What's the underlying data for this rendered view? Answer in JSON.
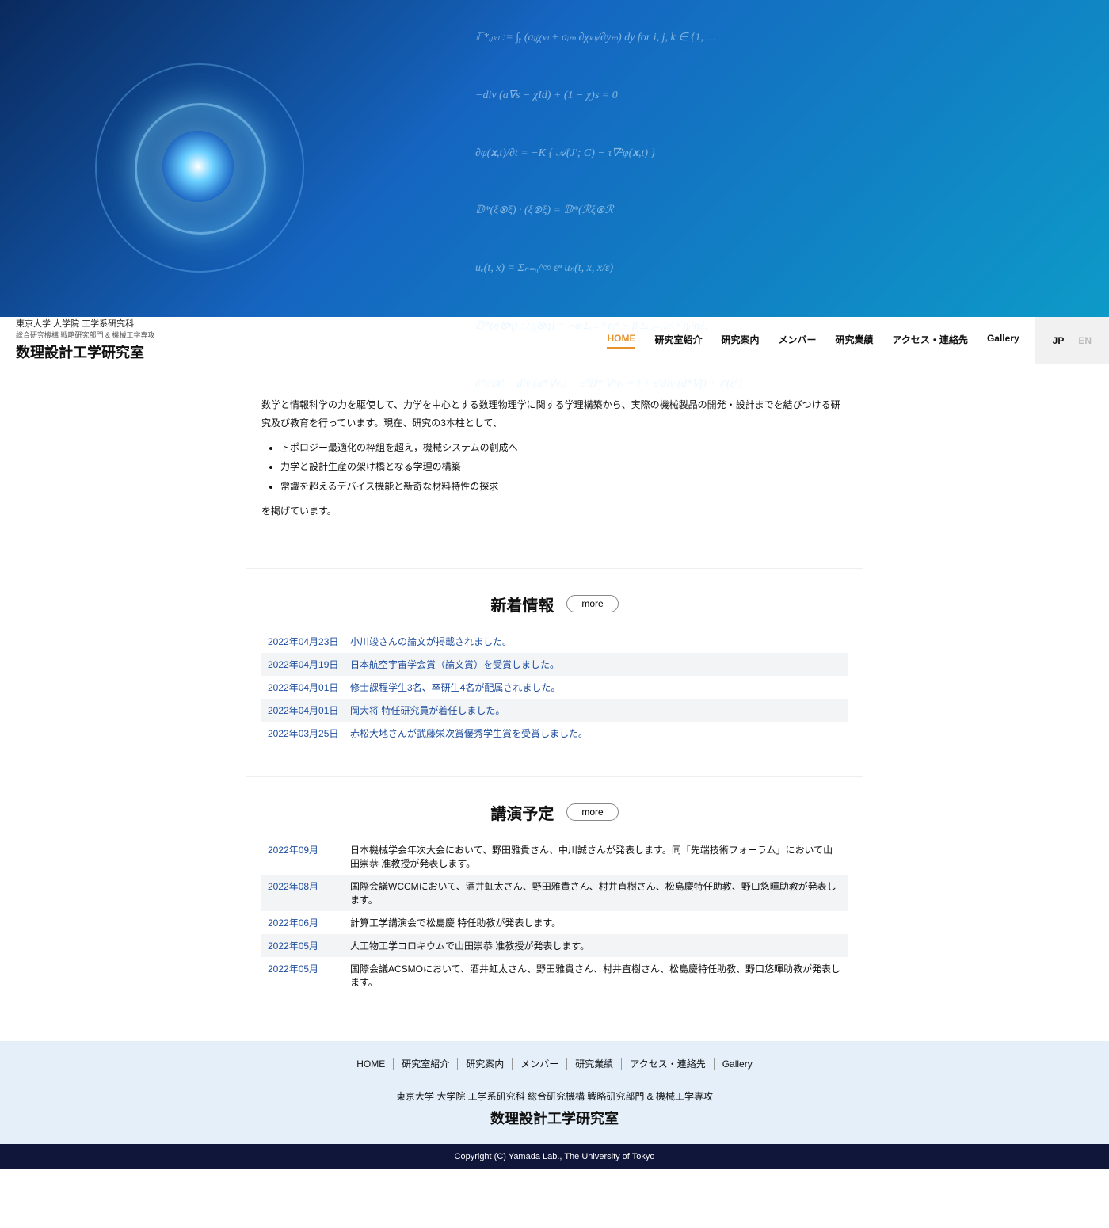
{
  "hero_math": "𝔼*ᵢⱼₖₗ := ∫ᵧ (aᵢⱼχₖₗ + aᵢₘ ∂χₖₗⱼ/∂yₘ) dy   for i, j, k ∈ {1, …\n\n−div (a∇s − χId) + (1 − χ)s = 0\n\n∂φ(𝐱,t)/∂t = −K { 𝒜(J'; C) − τ∇²φ(𝐱,t) }\n\n𝔻*(ξ⊗ξ) · (ξ⊗ξ) = 𝔻*(ℛξ⊗ℛ\n\nuₑ(t, x) = Σₙ₌₀^∞ εⁿ uₙ(t, x, x/ε)\n\n𝔻*(η⊗η) : (η⊗η) = −α Σᵢ₌₁ᵈ ηᵢ⁴ − β Σᵢ,ⱼ₌₁,ᵢ<ⱼᵈ ηᵢ²ηⱼ²,\n\n∂²v/∂t² − div (a*∇vₑ) + ε²𝔻* ∇⁴vₑ = f + ε²div (d*∇f) + 𝒪(ε⁴)",
  "brand": {
    "affil": "東京大学 大学院 工学系研究科",
    "sub": "総合研究機構 戦略研究部門 & 機械工学専攻",
    "lab": "数理設計工学研究室"
  },
  "nav": [
    {
      "label": "HOME",
      "active": true
    },
    {
      "label": "研究室紹介"
    },
    {
      "label": "研究案内"
    },
    {
      "label": "メンバー"
    },
    {
      "label": "研究業績"
    },
    {
      "label": "アクセス・連絡先"
    },
    {
      "label": "Gallery"
    }
  ],
  "lang": {
    "jp": "JP",
    "en": "EN"
  },
  "intro": {
    "lead": "数学と情報科学の力を駆使して、力学を中心とする数理物理学に関する学理構築から、実際の機械製品の開発・設計までを結びつける研究及び教育を行っています。現在、研究の3本柱として、",
    "pillars": [
      "トポロジー最適化の枠組を超え，機械システムの創成へ",
      "力学と設計生産の架け橋となる学理の構築",
      "常識を超えるデバイス機能と新奇な材料特性の探求"
    ],
    "tail": "を掲げています。"
  },
  "news": {
    "title": "新着情報",
    "more": "more",
    "items": [
      {
        "date": "2022年04月23日",
        "text": "小川竣さんの論文が掲載されました。"
      },
      {
        "date": "2022年04月19日",
        "text": "日本航空宇宙学会賞（論文賞）を受賞しました。"
      },
      {
        "date": "2022年04月01日",
        "text": "修士課程学生3名、卒研生4名が配属されました。"
      },
      {
        "date": "2022年04月01日",
        "text": "岡大将 特任研究員が着任しました。"
      },
      {
        "date": "2022年03月25日",
        "text": "赤松大地さんが武藤栄次賞優秀学生賞を受賞しました。"
      }
    ]
  },
  "talks": {
    "title": "講演予定",
    "more": "more",
    "items": [
      {
        "date": "2022年09月",
        "text": "日本機械学会年次大会において、野田雅貴さん、中川誠さんが発表します。同「先端技術フォーラム」において山田崇恭 准教授が発表します。"
      },
      {
        "date": "2022年08月",
        "text": "国際会議WCCMにおいて、酒井虹太さん、野田雅貴さん、村井直樹さん、松島慶特任助教、野口悠暉助教が発表します。"
      },
      {
        "date": "2022年06月",
        "text": "計算工学講演会で松島慶 特任助教が発表します。"
      },
      {
        "date": "2022年05月",
        "text": "人工物工学コロキウムで山田崇恭 准教授が発表します。"
      },
      {
        "date": "2022年05月",
        "text": "国際会議ACSMOにおいて、酒井虹太さん、野田雅貴さん、村井直樹さん、松島慶特任助教、野口悠暉助教が発表します。"
      }
    ]
  },
  "footer": {
    "links": [
      "HOME",
      "研究室紹介",
      "研究案内",
      "メンバー",
      "研究業績",
      "アクセス・連絡先",
      "Gallery"
    ],
    "affil": "東京大学 大学院 工学系研究科 総合研究機構 戦略研究部門 & 機械工学専攻",
    "lab": "数理設計工学研究室",
    "copyright": "Copyright (C) Yamada Lab., The University of Tokyo"
  }
}
